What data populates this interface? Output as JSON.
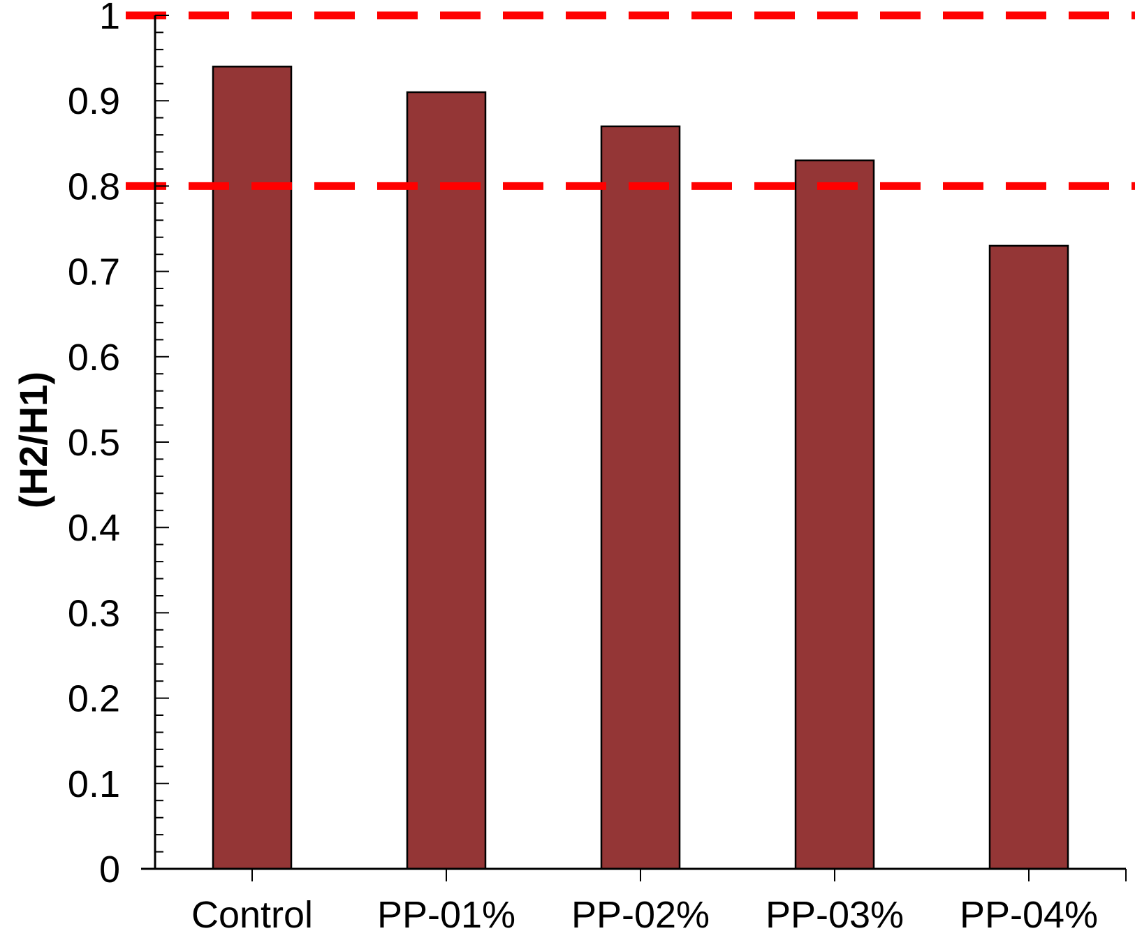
{
  "chart_data": {
    "type": "bar",
    "title": "",
    "xlabel": "",
    "ylabel": "(H2/H1)",
    "categories": [
      "Control",
      "PP-01%",
      "PP-02%",
      "PP-03%",
      "PP-04%"
    ],
    "values": [
      0.94,
      0.91,
      0.87,
      0.83,
      0.73
    ],
    "ylim": [
      0,
      1
    ],
    "yticks": [
      "0",
      "0.1",
      "0.2",
      "0.3",
      "0.4",
      "0.5",
      "0.6",
      "0.7",
      "0.8",
      "0.9",
      "1"
    ],
    "reference_lines": [
      1.0,
      0.8
    ],
    "grid": false,
    "legend": "none",
    "colors": {
      "bar_fill": "#943636",
      "bar_stroke": "#000000",
      "reference_line": "#ff0000",
      "axis": "#000000"
    }
  }
}
